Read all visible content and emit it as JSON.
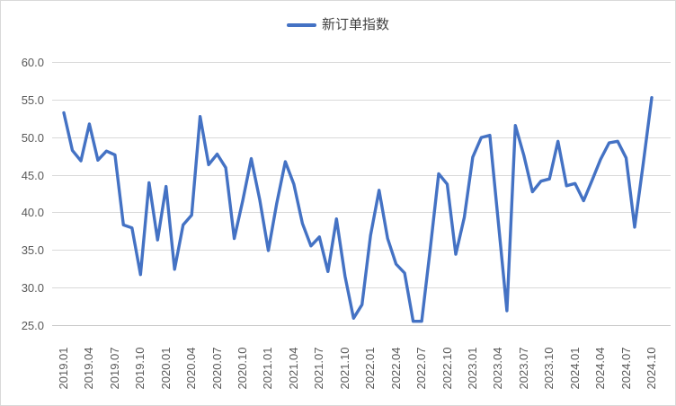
{
  "legend": {
    "label": "新订单指数"
  },
  "colors": {
    "line": "#4472C4",
    "grid": "#D9D9D9",
    "axis_line": "#C6C6C6",
    "tick_text": "#595959",
    "legend_text": "#404040",
    "background": "#FFFFFF",
    "border": "#D9D9D9"
  },
  "chart_data": {
    "type": "line",
    "title": "",
    "legend_position": "top-center",
    "grid": "horizontal",
    "ylim": [
      25,
      60
    ],
    "ytick_step": 5,
    "y_tick_labels": [
      "25.0",
      "30.0",
      "35.0",
      "40.0",
      "45.0",
      "50.0",
      "55.0",
      "60.0"
    ],
    "x_tick_labels": [
      "2019.01",
      "2019.04",
      "2019.07",
      "2019.10",
      "2020.01",
      "2020.04",
      "2020.07",
      "2020.10",
      "2021.01",
      "2021.04",
      "2021.07",
      "2021.10",
      "2022.01",
      "2022.04",
      "2022.07",
      "2022.10",
      "2023.01",
      "2023.04",
      "2023.07",
      "2023.10",
      "2024.01",
      "2024.04",
      "2024.07",
      "2024.10"
    ],
    "points_per_tick": 3,
    "n_points": 70,
    "x_start": "2019.01",
    "x_end": "2024.10",
    "series": [
      {
        "name": "新订单指数",
        "color": "#4472C4",
        "values": [
          53.3,
          48.3,
          46.9,
          51.8,
          47.0,
          48.2,
          47.7,
          38.4,
          38.0,
          31.8,
          44.0,
          36.4,
          43.5,
          32.5,
          38.4,
          39.7,
          52.8,
          46.4,
          47.8,
          46.0,
          36.6,
          41.6,
          47.2,
          41.7,
          35.0,
          41.3,
          46.8,
          43.8,
          38.6,
          35.6,
          36.8,
          32.2,
          39.2,
          31.6,
          26.0,
          27.8,
          37.0,
          43.0,
          36.6,
          33.2,
          32.0,
          25.6,
          25.6,
          35.2,
          45.2,
          43.8,
          34.5,
          39.4,
          47.4,
          50.0,
          50.3,
          38.7,
          27.0,
          51.6,
          47.6,
          42.8,
          44.2,
          44.5,
          49.5,
          43.6,
          43.9,
          41.6,
          44.3,
          47.1,
          49.3,
          49.5,
          47.3,
          38.1,
          46.5,
          55.3
        ]
      }
    ]
  }
}
